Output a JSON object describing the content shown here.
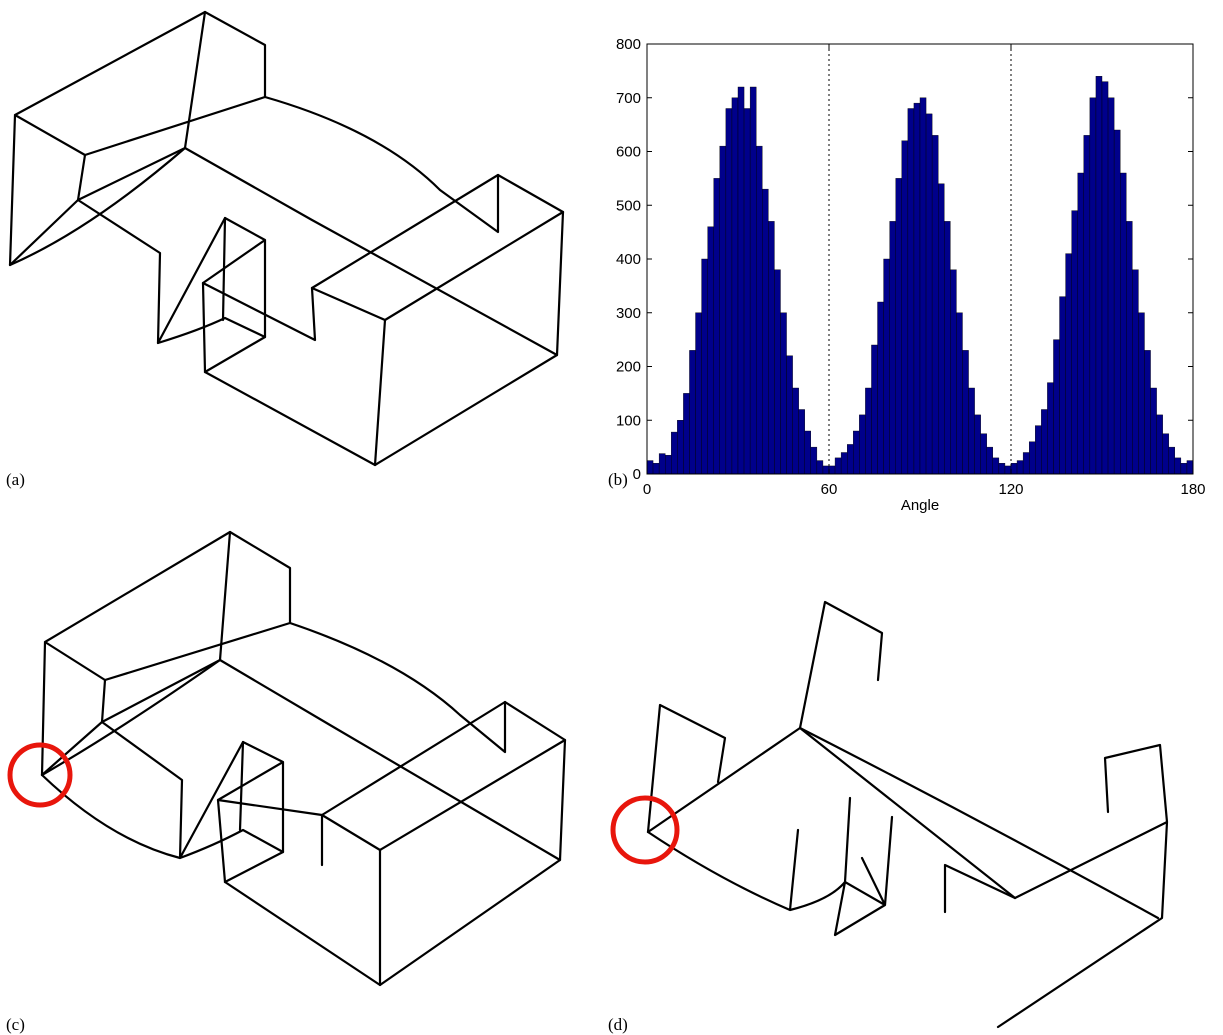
{
  "panels": {
    "a": "(a)",
    "b": "(b)",
    "c": "(c)",
    "d": "(d)"
  },
  "chart_data": {
    "type": "histogram",
    "xlabel": "Angle",
    "color": "#00008b",
    "xlim": [
      0,
      180
    ],
    "ylim": [
      0,
      800
    ],
    "xticks": [
      0,
      60,
      120,
      180
    ],
    "yticks": [
      0,
      100,
      200,
      300,
      400,
      500,
      600,
      700,
      800
    ],
    "vlines": [
      60,
      120
    ],
    "bins": [
      0,
      2,
      4,
      6,
      8,
      10,
      12,
      14,
      16,
      18,
      20,
      22,
      24,
      26,
      28,
      30,
      32,
      34,
      36,
      38,
      40,
      42,
      44,
      46,
      48,
      50,
      52,
      54,
      56,
      58,
      60,
      62,
      64,
      66,
      68,
      70,
      72,
      74,
      76,
      78,
      80,
      82,
      84,
      86,
      88,
      90,
      92,
      94,
      96,
      98,
      100,
      102,
      104,
      106,
      108,
      110,
      112,
      114,
      116,
      118,
      120,
      122,
      124,
      126,
      128,
      130,
      132,
      134,
      136,
      138,
      140,
      142,
      144,
      146,
      148,
      150,
      152,
      154,
      156,
      158,
      160,
      162,
      164,
      166,
      168,
      170,
      172,
      174,
      176,
      178,
      180
    ],
    "values": [
      25,
      20,
      38,
      35,
      78,
      100,
      150,
      230,
      300,
      400,
      460,
      550,
      610,
      680,
      700,
      720,
      680,
      720,
      610,
      530,
      470,
      380,
      300,
      220,
      160,
      120,
      80,
      50,
      25,
      15,
      15,
      30,
      40,
      55,
      80,
      110,
      160,
      240,
      320,
      400,
      470,
      550,
      620,
      680,
      690,
      700,
      670,
      630,
      540,
      470,
      380,
      300,
      230,
      160,
      110,
      75,
      50,
      30,
      20,
      15,
      20,
      25,
      40,
      60,
      90,
      120,
      170,
      250,
      330,
      410,
      490,
      560,
      630,
      700,
      740,
      730,
      700,
      640,
      560,
      470,
      380,
      300,
      230,
      160,
      110,
      75,
      50,
      30,
      20,
      25
    ]
  }
}
